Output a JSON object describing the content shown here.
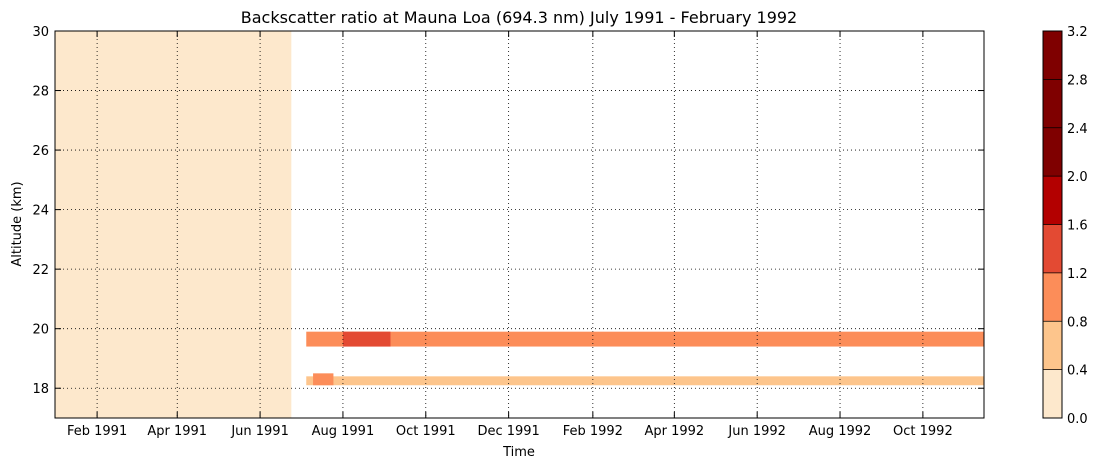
{
  "chart_data": {
    "type": "heatmap",
    "title": "Backscatter ratio at Mauna Loa (694.3 nm) July 1991 - February 1992",
    "xlabel": "Time",
    "ylabel": "Altitude (km)",
    "x_ticks": [
      "Feb 1991",
      "Apr 1991",
      "Jun 1991",
      "Aug 1991",
      "Oct 1991",
      "Dec 1991",
      "Feb 1992",
      "Apr 1992",
      "Jun 1992",
      "Aug 1992",
      "Oct 1992"
    ],
    "x_tick_dates": [
      "1991-02-01",
      "1991-04-01",
      "1991-06-01",
      "1991-08-01",
      "1991-10-01",
      "1991-12-01",
      "1992-02-01",
      "1992-04-01",
      "1992-06-01",
      "1992-08-01",
      "1992-10-01"
    ],
    "xlim": [
      "1991-01-01",
      "1992-11-15"
    ],
    "y_ticks": [
      18,
      20,
      22,
      24,
      26,
      28,
      30
    ],
    "ylim": [
      17,
      30
    ],
    "grid": true,
    "colorbar": {
      "levels": [
        0.0,
        0.4,
        0.8,
        1.2,
        1.6,
        2.0,
        2.4,
        2.8,
        3.2
      ],
      "tick_labels": [
        "0.0",
        "0.4",
        "0.8",
        "1.2",
        "1.6",
        "2.0",
        "2.4",
        "2.8",
        "3.2"
      ],
      "colors": [
        "#fde8cc",
        "#fdc58c",
        "#fc8d59",
        "#e34a33",
        "#b30000",
        "#7f0000",
        "#7f0000",
        "#7f0000"
      ]
    },
    "regions": [
      {
        "name": "fill",
        "x_range": [
          "1991-01-01",
          "1991-06-24"
        ],
        "y_range": [
          17,
          30
        ],
        "value": 0.2
      },
      {
        "name": "upper layer",
        "x_range": [
          "1991-07-05",
          "1992-11-15"
        ],
        "y_range": [
          19.4,
          19.9
        ],
        "value": 1.0
      },
      {
        "name": "upper layer core",
        "x_range": [
          "1991-08-01",
          "1991-09-05"
        ],
        "y_range": [
          19.4,
          19.9
        ],
        "value": 1.4
      },
      {
        "name": "lower layer",
        "x_range": [
          "1991-07-05",
          "1992-11-15"
        ],
        "y_range": [
          18.1,
          18.4
        ],
        "value": 0.6
      },
      {
        "name": "lower layer spot",
        "x_range": [
          "1991-07-10",
          "1991-07-25"
        ],
        "y_range": [
          18.1,
          18.5
        ],
        "value": 1.0
      }
    ]
  }
}
